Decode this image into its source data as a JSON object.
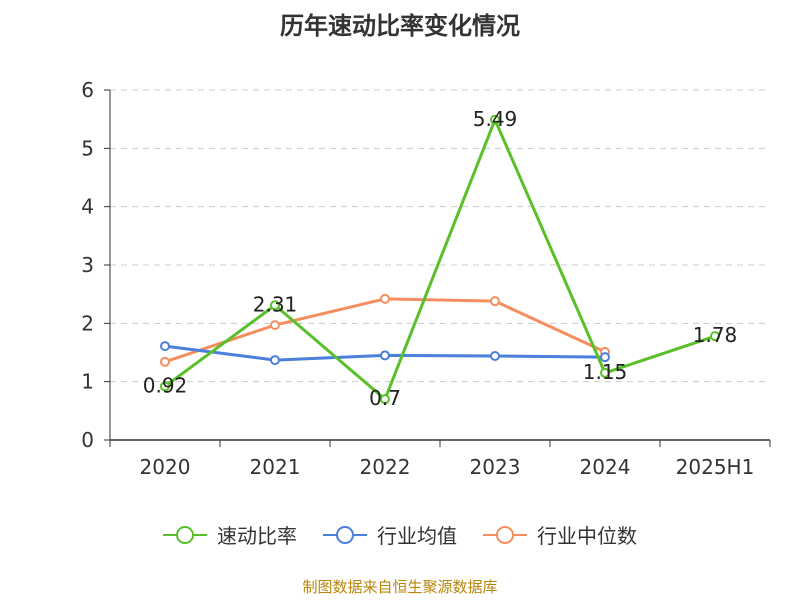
{
  "chart_data": {
    "type": "line",
    "title": "历年速动比率变化情况",
    "categories": [
      "2020",
      "2021",
      "2022",
      "2023",
      "2024",
      "2025H1"
    ],
    "ylim": [
      0,
      6
    ],
    "yticks": [
      "0",
      "1",
      "2",
      "3",
      "4",
      "5",
      "6"
    ],
    "grid": true,
    "legend_position": "bottom",
    "series": [
      {
        "name": "速动比率",
        "color": "#5ac02a",
        "values": [
          0.92,
          2.31,
          0.7,
          5.49,
          1.15,
          1.78
        ],
        "labels": [
          "0.92",
          "2.31",
          "0.7",
          "5.49",
          "1.15",
          "1.78"
        ]
      },
      {
        "name": "行业均值",
        "color": "#4a7fdb",
        "values": [
          1.61,
          1.37,
          1.45,
          1.44,
          1.42,
          null
        ]
      },
      {
        "name": "行业中位数",
        "color": "#f58e5f",
        "values": [
          1.34,
          1.97,
          2.42,
          2.38,
          1.51,
          null
        ]
      }
    ]
  },
  "footer": {
    "source": "制图数据来自恒生聚源数据库"
  }
}
